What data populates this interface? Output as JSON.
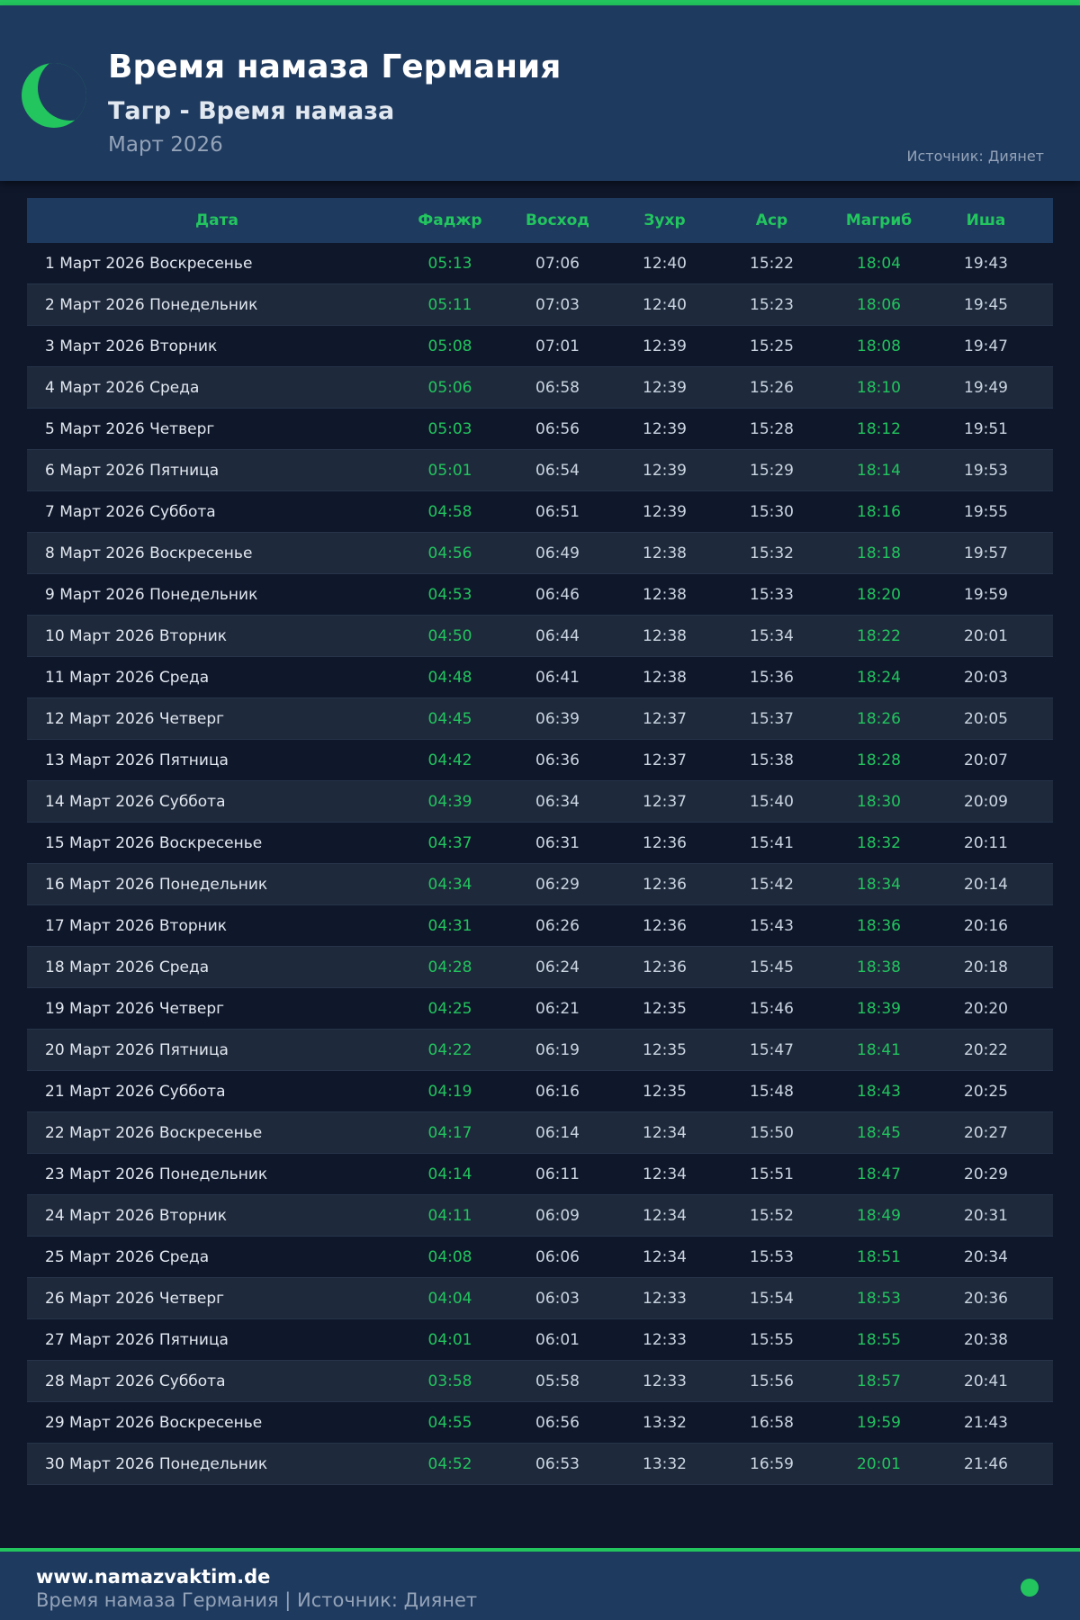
{
  "header": {
    "title": "Время намаза Германия",
    "subtitle": "Тагр - Время намаза",
    "month": "Март 2026",
    "source": "Источник: Диянет"
  },
  "colors": {
    "accent": "#22c55e",
    "header_bg": "#1e3a5f",
    "page_bg": "#0f172a"
  },
  "table": {
    "columns": [
      "Дата",
      "Фаджр",
      "Восход",
      "Зухр",
      "Аср",
      "Магриб",
      "Иша"
    ],
    "rows": [
      [
        "1 Март 2026 Воскресенье",
        "05:13",
        "07:06",
        "12:40",
        "15:22",
        "18:04",
        "19:43"
      ],
      [
        "2 Март 2026 Понедельник",
        "05:11",
        "07:03",
        "12:40",
        "15:23",
        "18:06",
        "19:45"
      ],
      [
        "3 Март 2026 Вторник",
        "05:08",
        "07:01",
        "12:39",
        "15:25",
        "18:08",
        "19:47"
      ],
      [
        "4 Март 2026 Среда",
        "05:06",
        "06:58",
        "12:39",
        "15:26",
        "18:10",
        "19:49"
      ],
      [
        "5 Март 2026 Четверг",
        "05:03",
        "06:56",
        "12:39",
        "15:28",
        "18:12",
        "19:51"
      ],
      [
        "6 Март 2026 Пятница",
        "05:01",
        "06:54",
        "12:39",
        "15:29",
        "18:14",
        "19:53"
      ],
      [
        "7 Март 2026 Суббота",
        "04:58",
        "06:51",
        "12:39",
        "15:30",
        "18:16",
        "19:55"
      ],
      [
        "8 Март 2026 Воскресенье",
        "04:56",
        "06:49",
        "12:38",
        "15:32",
        "18:18",
        "19:57"
      ],
      [
        "9 Март 2026 Понедельник",
        "04:53",
        "06:46",
        "12:38",
        "15:33",
        "18:20",
        "19:59"
      ],
      [
        "10 Март 2026 Вторник",
        "04:50",
        "06:44",
        "12:38",
        "15:34",
        "18:22",
        "20:01"
      ],
      [
        "11 Март 2026 Среда",
        "04:48",
        "06:41",
        "12:38",
        "15:36",
        "18:24",
        "20:03"
      ],
      [
        "12 Март 2026 Четверг",
        "04:45",
        "06:39",
        "12:37",
        "15:37",
        "18:26",
        "20:05"
      ],
      [
        "13 Март 2026 Пятница",
        "04:42",
        "06:36",
        "12:37",
        "15:38",
        "18:28",
        "20:07"
      ],
      [
        "14 Март 2026 Суббота",
        "04:39",
        "06:34",
        "12:37",
        "15:40",
        "18:30",
        "20:09"
      ],
      [
        "15 Март 2026 Воскресенье",
        "04:37",
        "06:31",
        "12:36",
        "15:41",
        "18:32",
        "20:11"
      ],
      [
        "16 Март 2026 Понедельник",
        "04:34",
        "06:29",
        "12:36",
        "15:42",
        "18:34",
        "20:14"
      ],
      [
        "17 Март 2026 Вторник",
        "04:31",
        "06:26",
        "12:36",
        "15:43",
        "18:36",
        "20:16"
      ],
      [
        "18 Март 2026 Среда",
        "04:28",
        "06:24",
        "12:36",
        "15:45",
        "18:38",
        "20:18"
      ],
      [
        "19 Март 2026 Четверг",
        "04:25",
        "06:21",
        "12:35",
        "15:46",
        "18:39",
        "20:20"
      ],
      [
        "20 Март 2026 Пятница",
        "04:22",
        "06:19",
        "12:35",
        "15:47",
        "18:41",
        "20:22"
      ],
      [
        "21 Март 2026 Суббота",
        "04:19",
        "06:16",
        "12:35",
        "15:48",
        "18:43",
        "20:25"
      ],
      [
        "22 Март 2026 Воскресенье",
        "04:17",
        "06:14",
        "12:34",
        "15:50",
        "18:45",
        "20:27"
      ],
      [
        "23 Март 2026 Понедельник",
        "04:14",
        "06:11",
        "12:34",
        "15:51",
        "18:47",
        "20:29"
      ],
      [
        "24 Март 2026 Вторник",
        "04:11",
        "06:09",
        "12:34",
        "15:52",
        "18:49",
        "20:31"
      ],
      [
        "25 Март 2026 Среда",
        "04:08",
        "06:06",
        "12:34",
        "15:53",
        "18:51",
        "20:34"
      ],
      [
        "26 Март 2026 Четверг",
        "04:04",
        "06:03",
        "12:33",
        "15:54",
        "18:53",
        "20:36"
      ],
      [
        "27 Март 2026 Пятница",
        "04:01",
        "06:01",
        "12:33",
        "15:55",
        "18:55",
        "20:38"
      ],
      [
        "28 Март 2026 Суббота",
        "03:58",
        "05:58",
        "12:33",
        "15:56",
        "18:57",
        "20:41"
      ],
      [
        "29 Март 2026 Воскресенье",
        "04:55",
        "06:56",
        "13:32",
        "16:58",
        "19:59",
        "21:43"
      ],
      [
        "30 Март 2026 Понедельник",
        "04:52",
        "06:53",
        "13:32",
        "16:59",
        "20:01",
        "21:46"
      ]
    ]
  },
  "footer": {
    "site": "www.namazvaktim.de",
    "text": "Время намаза Германия | Источник: Диянет"
  }
}
